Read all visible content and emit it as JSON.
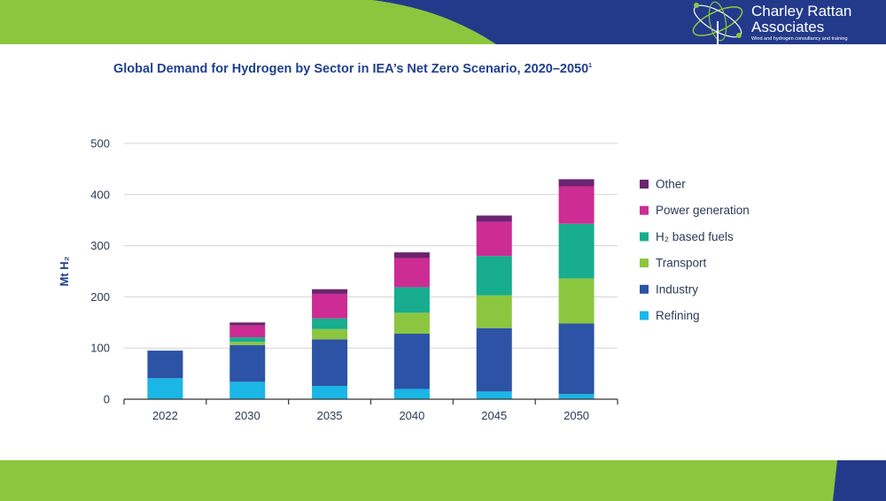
{
  "header": {
    "logo_name_line1": "Charley Rattan",
    "logo_name_line2": "Associates",
    "logo_tagline": "Wind and hydrogen consultancy and training"
  },
  "colors": {
    "band_green": "#8cc63f",
    "band_navy": "#233a8a",
    "title": "#1f3f8f",
    "grid": "#d4d4d4",
    "axis": "#333333"
  },
  "chart_data": {
    "type": "bar",
    "stacked": true,
    "title": "Global Demand for Hydrogen by Sector in IEA’s Net Zero Scenario, 2020–2050",
    "title_sup": "1",
    "xlabel": "",
    "ylabel": "Mt H₂",
    "ylim": [
      0,
      500
    ],
    "yticks": [
      0,
      100,
      200,
      300,
      400,
      500
    ],
    "grid": true,
    "legend_position": "right",
    "categories": [
      "2022",
      "2030",
      "2035",
      "2040",
      "2045",
      "2050"
    ],
    "series": [
      {
        "name": "Refining",
        "color": "#1ab6e6",
        "values": [
          41,
          34,
          26,
          20,
          15,
          10
        ]
      },
      {
        "name": "Industry",
        "color": "#2c53a5",
        "values": [
          54,
          72,
          91,
          108,
          124,
          138
        ]
      },
      {
        "name": "Transport",
        "color": "#8cc63f",
        "values": [
          0,
          6,
          20,
          41,
          64,
          88
        ]
      },
      {
        "name": "H₂ based fuels",
        "color": "#17ad8e",
        "values": [
          0,
          9,
          21,
          50,
          77,
          107
        ]
      },
      {
        "name": "Power generation",
        "color": "#cc2c93",
        "values": [
          0,
          23,
          48,
          57,
          67,
          73
        ]
      },
      {
        "name": "Other",
        "color": "#6b2470",
        "values": [
          0,
          6,
          9,
          11,
          12,
          14
        ]
      }
    ]
  }
}
